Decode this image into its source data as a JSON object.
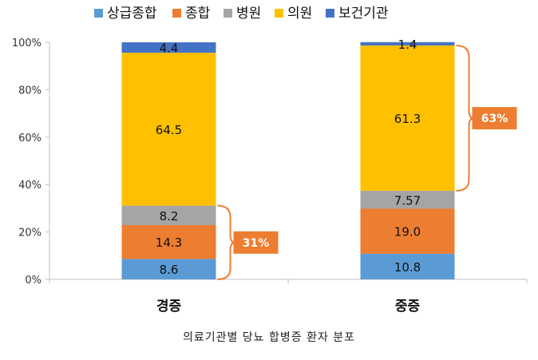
{
  "chart_data": {
    "type": "bar",
    "stacked": true,
    "categories": [
      "경증",
      "중증"
    ],
    "series": [
      {
        "name": "상급종합",
        "color": "#5B9BD5",
        "values": [
          8.6,
          10.8
        ]
      },
      {
        "name": "종합",
        "color": "#ED7D31",
        "values": [
          14.3,
          19.0
        ]
      },
      {
        "name": "병원",
        "color": "#A5A5A5",
        "values": [
          8.2,
          7.57
        ]
      },
      {
        "name": "의원",
        "color": "#FFC000",
        "values": [
          64.5,
          61.3
        ]
      },
      {
        "name": "보건기관",
        "color": "#4472C4",
        "values": [
          4.4,
          1.4
        ]
      }
    ],
    "value_labels": [
      [
        "8.6",
        "10.8"
      ],
      [
        "14.3",
        "19.0"
      ],
      [
        "8.2",
        "7.57"
      ],
      [
        "64.5",
        "61.3"
      ],
      [
        "4.4",
        "1.4"
      ]
    ],
    "ylim": [
      0,
      100
    ],
    "yticks": [
      "0%",
      "20%",
      "40%",
      "60%",
      "80%",
      "100%"
    ],
    "legend_position": "top",
    "grid": false,
    "annotations": [
      {
        "text": "31%",
        "category_index": 0,
        "from": 0,
        "to": 31.1,
        "color": "#ED7D31"
      },
      {
        "text": "63%",
        "category_index": 1,
        "from": 37.37,
        "to": 98.6,
        "color": "#ED7D31"
      }
    ]
  },
  "caption": "의료기관별 당뇨 합병증 환자 분포"
}
